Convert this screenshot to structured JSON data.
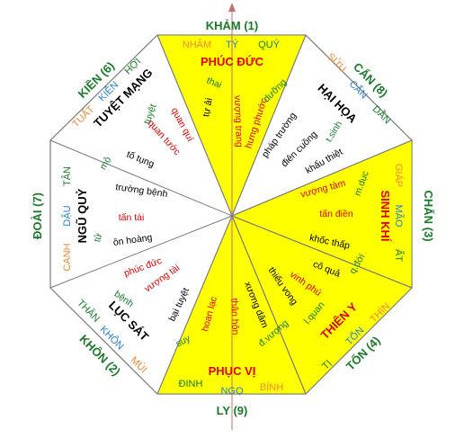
{
  "colors": {
    "green": "#1a7a2a",
    "red": "#e00000",
    "orange": "#f08a3a",
    "blue": "#2a7fd0",
    "black": "#000000",
    "yellow": "#ffff00",
    "white": "#ffffff",
    "line": "#7a7a7a"
  },
  "directions": {
    "kham": "KHẢM (1)",
    "can8": "CẤN (8)",
    "chan": "CHẤN (3)",
    "ton": "TỐN (4)",
    "ly": "LY (9)",
    "khon": "KHÔN (2)",
    "doai": "ĐOÀI (7)",
    "kien": "KIỀN (6)"
  },
  "palaces": {
    "phuc_duc": "PHÚC ĐỨC",
    "hai_hoa": "HẠI HỌA",
    "sinh_khi": "SINH KHÍ",
    "thien_y": "THIÊN Y",
    "phuc_vi": "PHỤC VỊ",
    "luc_sat": "LỤC SÁT",
    "ngu_quy": "NGŨ QUỶ",
    "tuyet_mang": "TUYỆT MẠNG"
  },
  "subdirections": {
    "nham": "NHÂM",
    "ty": "TÝ",
    "quy_n": "QUÝ",
    "suu": "SỬU",
    "can_ne": "CẤN",
    "dan": "DẦN",
    "giap": "GIÁP",
    "mao": "MÃO",
    "at": "ẤT",
    "thin": "THÌN",
    "ton_se": "TỐN",
    "ti": "TỊ",
    "binh": "BÍNH",
    "ngo": "NGỌ",
    "dinh": "ĐINH",
    "mui": "MÙI",
    "khon_sw": "KHÔN",
    "than": "THÂN",
    "canh": "CANH",
    "dau": "DẬU",
    "tan": "TÂN",
    "tuat": "TUẤT",
    "kien_nw": "KIỀN",
    "hoi": "HỢI"
  },
  "stars": {
    "thai": "thai",
    "tu_ai": "tự ải",
    "vuong_trang": "vượng trang",
    "hung_phuoc": "hưng phước",
    "duong": "dưỡng",
    "phap_truong": "pháp trường",
    "dien_cuong": "điên cuồng",
    "t_sinh": "t.sinh",
    "khau_thiet": "khẩu thiệt",
    "vuong_tam": "vượng tàm",
    "m_duc": "m.dục",
    "tan_dien": "tấn điền",
    "khoc_thap": "khốc thấp",
    "co_qua": "cô quả",
    "q_doi": "q.đới",
    "vinh_phu": "vinh phú",
    "thieu_vong": "thiếu vong",
    "l_quan": "l.quan",
    "xuong_dam": "xương dâm",
    "d_vuong": "đ.vượng",
    "than_hon": "thân hôn",
    "hoan_lac": "hoan lạc",
    "suy": "suy",
    "bai_tuyet": "bại tuyệt",
    "vuong_tai": "vượng tài",
    "benh": "bệnh",
    "phuc_duc_s": "phúc đức",
    "on_hoang": "ôn hoàng",
    "tu": "tử",
    "tan_tai": "tấn tài",
    "truong_benh": "trường bệnh",
    "to_tung": "tố tụng",
    "mo": "mộ",
    "quan_tuoc": "quan tước",
    "quan_qui": "quan quí",
    "tuyet": "tuyệt"
  }
}
